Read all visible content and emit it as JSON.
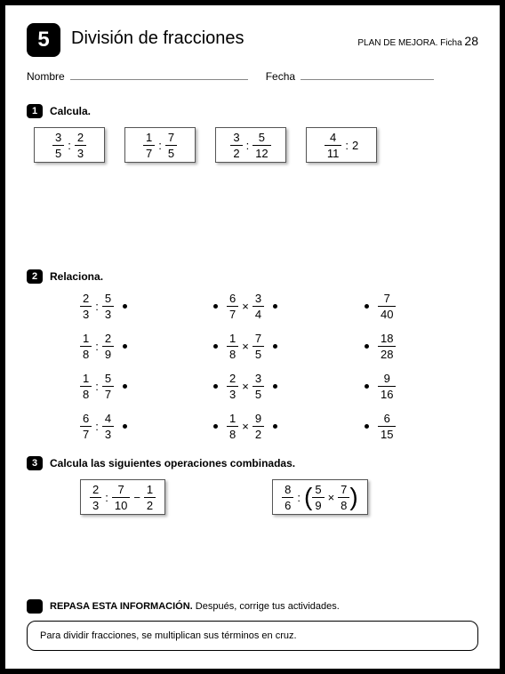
{
  "header": {
    "badge_number": "5",
    "title": "División de fracciones",
    "plan_label": "PLAN DE MEJORA. Ficha",
    "ficha_number": "28",
    "nombre_label": "Nombre",
    "fecha_label": "Fecha"
  },
  "section1": {
    "number": "1",
    "title": "Calcula.",
    "boxes": [
      {
        "a_n": "3",
        "a_d": "5",
        "op": ":",
        "b_n": "2",
        "b_d": "3",
        "b_whole": null
      },
      {
        "a_n": "1",
        "a_d": "7",
        "op": ":",
        "b_n": "7",
        "b_d": "5",
        "b_whole": null
      },
      {
        "a_n": "3",
        "a_d": "2",
        "op": ":",
        "b_n": "5",
        "b_d": "12",
        "b_whole": null
      },
      {
        "a_n": "4",
        "a_d": "11",
        "op": ":",
        "b_n": null,
        "b_d": null,
        "b_whole": "2"
      }
    ]
  },
  "section2": {
    "number": "2",
    "title": "Relaciona.",
    "rows": [
      {
        "l_a_n": "2",
        "l_a_d": "3",
        "l_op": ":",
        "l_b_n": "5",
        "l_b_d": "3",
        "m_a_n": "6",
        "m_a_d": "7",
        "m_op": "×",
        "m_b_n": "3",
        "m_b_d": "4",
        "r_n": "7",
        "r_d": "40"
      },
      {
        "l_a_n": "1",
        "l_a_d": "8",
        "l_op": ":",
        "l_b_n": "2",
        "l_b_d": "9",
        "m_a_n": "1",
        "m_a_d": "8",
        "m_op": "×",
        "m_b_n": "7",
        "m_b_d": "5",
        "r_n": "18",
        "r_d": "28"
      },
      {
        "l_a_n": "1",
        "l_a_d": "8",
        "l_op": ":",
        "l_b_n": "5",
        "l_b_d": "7",
        "m_a_n": "2",
        "m_a_d": "3",
        "m_op": "×",
        "m_b_n": "3",
        "m_b_d": "5",
        "r_n": "9",
        "r_d": "16"
      },
      {
        "l_a_n": "6",
        "l_a_d": "7",
        "l_op": ":",
        "l_b_n": "4",
        "l_b_d": "3",
        "m_a_n": "1",
        "m_a_d": "8",
        "m_op": "×",
        "m_b_n": "9",
        "m_b_d": "2",
        "r_n": "6",
        "r_d": "15"
      }
    ]
  },
  "section3": {
    "number": "3",
    "title": "Calcula las siguientes operaciones combinadas.",
    "expressions": [
      {
        "type": "minus",
        "a_n": "2",
        "a_d": "3",
        "op1": ":",
        "b_n": "7",
        "b_d": "10",
        "op2": "−",
        "c_n": "1",
        "c_d": "2"
      },
      {
        "type": "paren",
        "a_n": "8",
        "a_d": "6",
        "op1": ":",
        "b_n": "5",
        "b_d": "9",
        "op2": "×",
        "c_n": "7",
        "c_d": "8"
      }
    ]
  },
  "review": {
    "title_bold": "REPASA ESTA INFORMACIÓN.",
    "title_rest": " Después, corrige tus actividades.",
    "box_text": "Para dividir fracciones, se multiplican sus términos en cruz."
  },
  "styling": {
    "border_color": "#000000",
    "badge_bg": "#000000",
    "badge_fg": "#ffffff",
    "box_border": "#555555",
    "box_shadow": "rgba(0,0,0,0.3)",
    "line_color": "#888888",
    "title_fontsize": 20,
    "body_fontsize": 12
  }
}
